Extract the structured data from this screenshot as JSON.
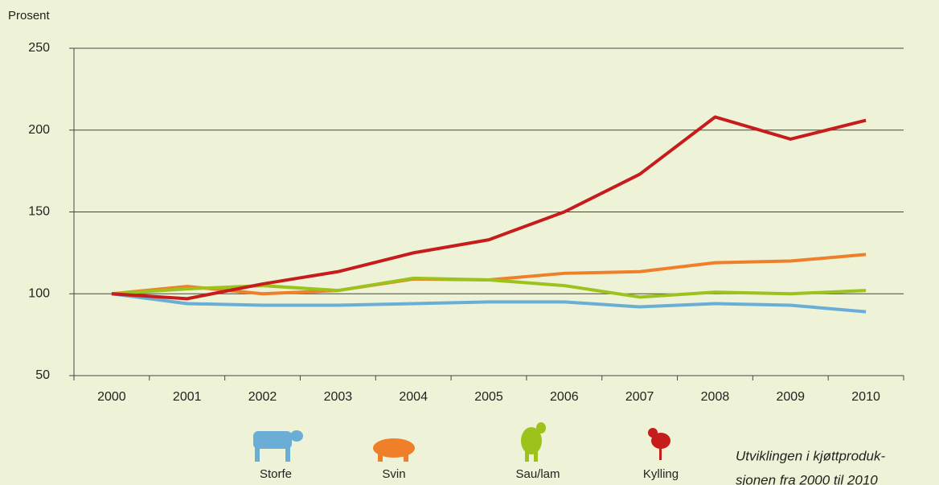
{
  "chart_data": {
    "type": "line",
    "y_label": "Prosent",
    "categories": [
      "2000",
      "2001",
      "2002",
      "2003",
      "2004",
      "2005",
      "2006",
      "2007",
      "2008",
      "2009",
      "2010"
    ],
    "series": [
      {
        "name": "Storfe",
        "color": "#6aaed6",
        "values": [
          100,
          94,
          93,
          93,
          94,
          95,
          95,
          92,
          94,
          93,
          89
        ]
      },
      {
        "name": "Svin",
        "color": "#f07f2a",
        "values": [
          100,
          104.5,
          100,
          102,
          109,
          108.5,
          112.5,
          113.5,
          119,
          120,
          124
        ]
      },
      {
        "name": "Sau/lam",
        "color": "#9cc31b",
        "values": [
          100,
          103,
          105,
          102,
          109.5,
          108.5,
          105,
          98,
          101,
          100,
          102
        ]
      },
      {
        "name": "Kylling",
        "color": "#c71c1c",
        "values": [
          100,
          97,
          106,
          113.5,
          125,
          133,
          150,
          173,
          208,
          194.5,
          206
        ]
      }
    ],
    "ylim": [
      50,
      250
    ],
    "yticks": [
      50,
      100,
      150,
      200,
      250
    ],
    "grid": true,
    "annotation": [
      "Utviklingen i kjøttproduk-",
      "sjonen fra 2000 til 2010"
    ]
  }
}
